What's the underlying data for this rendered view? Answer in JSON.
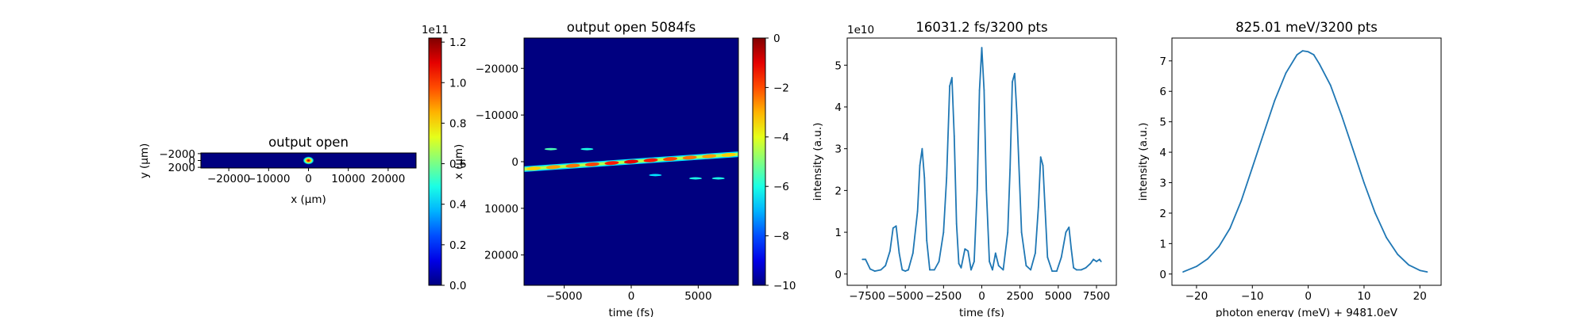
{
  "chart_data": [
    {
      "type": "heatmap",
      "title": "output open",
      "xlabel": "x (μm)",
      "ylabel": "y (μm)",
      "x_ticks": [
        "−20000",
        "−10000",
        "0",
        "10000",
        "20000"
      ],
      "y_ticks": [
        "−2000",
        "0",
        "2000"
      ],
      "colormap": "jet",
      "colorbar": {
        "ticks": [
          "0.0",
          "0.2",
          "0.4",
          "0.6",
          "0.8",
          "1.0",
          "1.2"
        ],
        "offset_label": "1e11",
        "range": [
          0,
          122000000000.0
        ]
      },
      "xlim": [
        -27000,
        27000
      ],
      "ylim": [
        2200,
        -2200
      ],
      "spot": {
        "x": 0,
        "y": 0,
        "peak": 122000000000.0
      }
    },
    {
      "type": "heatmap",
      "title": "output open 5084fs",
      "xlabel": "time (fs)",
      "ylabel": "x (μm)",
      "x_ticks": [
        "−5000",
        "0",
        "5000"
      ],
      "y_ticks": [
        "−20000",
        "−10000",
        "0",
        "10000",
        "20000"
      ],
      "colormap": "jet",
      "colorbar": {
        "ticks": [
          "0",
          "−2",
          "−4",
          "−6",
          "−8",
          "−10"
        ],
        "range": [
          -10,
          0
        ]
      },
      "xlim": [
        -8000,
        8000
      ],
      "ylim": [
        -26500,
        26500
      ],
      "streak": {
        "x_start": -8000,
        "y_start": 1600,
        "x_end": 8000,
        "y_end": -1600
      }
    },
    {
      "type": "line",
      "title": "16031.2 fs/3200 pts",
      "xlabel": "time (fs)",
      "ylabel": "intensity (a.u.)",
      "offset_label": "1e10",
      "x_ticks": [
        "−7500",
        "−5000",
        "−2500",
        "0",
        "2500",
        "5000",
        "7500"
      ],
      "y_ticks": [
        "0",
        "1",
        "2",
        "3",
        "4",
        "5"
      ],
      "xlim": [
        -8800,
        8800
      ],
      "ylim": [
        -0.27,
        5.65
      ],
      "series": [
        {
          "x": [
            -7800,
            -7600,
            -7300,
            -7000,
            -6600,
            -6300,
            -6000,
            -5800,
            -5600,
            -5400,
            -5200,
            -5000,
            -4800,
            -4500,
            -4200,
            -4050,
            -3900,
            -3750,
            -3600,
            -3400,
            -3100,
            -2800,
            -2500,
            -2300,
            -2100,
            -1950,
            -1800,
            -1650,
            -1500,
            -1350,
            -1100,
            -900,
            -700,
            -500,
            -300,
            -150,
            0,
            150,
            300,
            500,
            700,
            900,
            1100,
            1400,
            1700,
            1850,
            2000,
            2150,
            2300,
            2600,
            2900,
            3200,
            3500,
            3700,
            3850,
            4000,
            4150,
            4300,
            4600,
            4900,
            5200,
            5500,
            5700,
            5850,
            6000,
            6200,
            6500,
            6800,
            7100,
            7300,
            7500,
            7700,
            7800
          ],
          "values": [
            0.35,
            0.35,
            0.12,
            0.07,
            0.1,
            0.2,
            0.55,
            1.1,
            1.15,
            0.5,
            0.1,
            0.07,
            0.1,
            0.5,
            1.5,
            2.6,
            3.0,
            2.3,
            0.8,
            0.1,
            0.1,
            0.3,
            1.0,
            2.3,
            4.5,
            4.7,
            3.3,
            1.2,
            0.25,
            0.15,
            0.6,
            0.55,
            0.1,
            0.3,
            2.0,
            4.4,
            5.42,
            4.4,
            2.0,
            0.3,
            0.1,
            0.5,
            0.2,
            0.1,
            1.0,
            2.5,
            4.6,
            4.8,
            3.8,
            1.0,
            0.2,
            0.1,
            0.5,
            1.6,
            2.8,
            2.6,
            1.5,
            0.4,
            0.07,
            0.07,
            0.4,
            1.0,
            1.12,
            0.6,
            0.15,
            0.1,
            0.1,
            0.15,
            0.25,
            0.35,
            0.3,
            0.35,
            0.3
          ]
        }
      ]
    },
    {
      "type": "line",
      "title": "825.01 meV/3200 pts",
      "xlabel": "photon energy (meV) + 9481.0eV",
      "ylabel": "intensity (a.u.)",
      "x_ticks": [
        "−20",
        "−10",
        "0",
        "10",
        "20"
      ],
      "y_ticks": [
        "0",
        "1",
        "2",
        "3",
        "4",
        "5",
        "6",
        "7"
      ],
      "xlim": [
        -24.4,
        23.8
      ],
      "ylim": [
        -0.37,
        7.75
      ],
      "series": [
        {
          "x": [
            -22.4,
            -20,
            -18,
            -16,
            -14,
            -12,
            -10,
            -8,
            -6,
            -4,
            -2,
            -1,
            0,
            1,
            2,
            4,
            6,
            8,
            10,
            12,
            14,
            16,
            18,
            20,
            21.3
          ],
          "values": [
            0.07,
            0.25,
            0.5,
            0.9,
            1.5,
            2.4,
            3.5,
            4.6,
            5.7,
            6.6,
            7.2,
            7.33,
            7.3,
            7.2,
            6.9,
            6.2,
            5.2,
            4.1,
            3.0,
            2.0,
            1.2,
            0.65,
            0.3,
            0.12,
            0.07
          ]
        }
      ]
    }
  ]
}
